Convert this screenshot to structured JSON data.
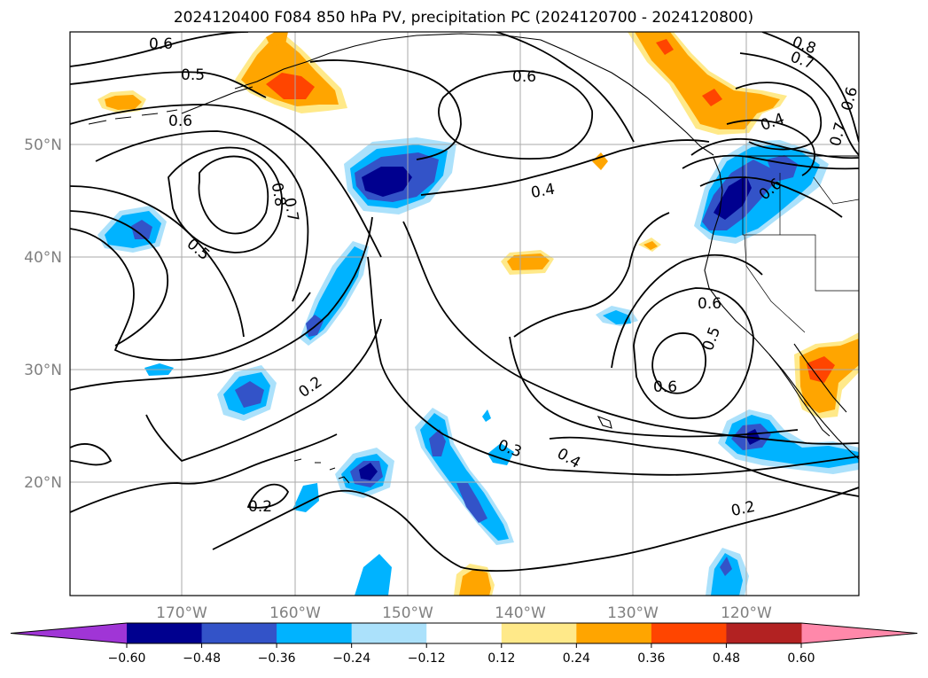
{
  "title": "2024120400 F084 850 hPa PV, precipitation PC (2024120700 - 2024120800)",
  "map": {
    "lat_labels": [
      "50°N",
      "40°N",
      "30°N",
      "20°N"
    ],
    "lon_labels": [
      "170°W",
      "160°W",
      "150°W",
      "140°W",
      "130°W",
      "120°W"
    ],
    "grid": true,
    "gridline_color": "#aaaaaa"
  },
  "contour_labels": [
    "0.6",
    "0.5",
    "0.6",
    "0.8",
    "0.7",
    "0.5",
    "0.6",
    "0.4",
    "0.2",
    "0.2",
    "0.3",
    "0.4",
    "0.2",
    "0.6",
    "0.5",
    "0.6",
    "0.4",
    "0.6",
    "0.8",
    "0.7",
    "0.7",
    "0.6"
  ],
  "colorbar": {
    "ticks": [
      "−0.60",
      "−0.48",
      "−0.36",
      "−0.24",
      "−0.12",
      "0.12",
      "0.24",
      "0.36",
      "0.48",
      "0.60"
    ],
    "colors": [
      "#a035d6",
      "#00008f",
      "#3353c8",
      "#00b3ff",
      "#abe1fb",
      "#ffffff",
      "#ffe989",
      "#ffa500",
      "#ff4500",
      "#b22222",
      "#ff88aa"
    ]
  },
  "shading_colors": {
    "light_blue": "#abe1fb",
    "blue": "#00b3ff",
    "mid_blue": "#3353c8",
    "navy": "#00008f",
    "light_yellow": "#ffe989",
    "orange": "#ffa500",
    "red_orange": "#ff4500"
  }
}
